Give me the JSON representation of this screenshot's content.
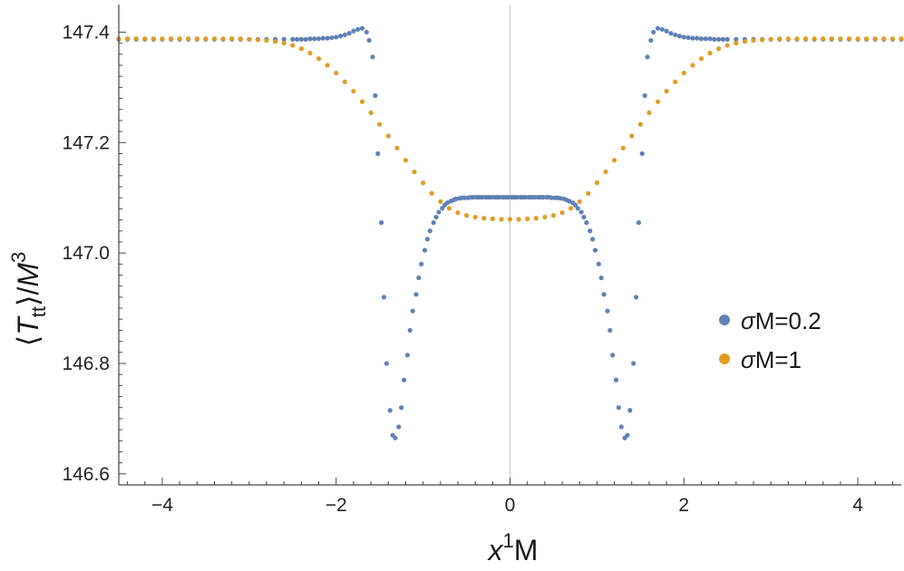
{
  "chart_data": {
    "type": "scatter",
    "xlim": [
      -4.5,
      4.5
    ],
    "ylim": [
      146.58,
      147.45
    ],
    "x_ticks": [
      -4,
      -2,
      0,
      2,
      4
    ],
    "x_tick_labels": [
      "−4",
      "−2",
      "0",
      "2",
      "4"
    ],
    "y_ticks": [
      146.6,
      146.8,
      147.0,
      147.2,
      147.4
    ],
    "y_tick_labels": [
      "146.6",
      "146.8",
      "147.0",
      "147.2",
      "147.4"
    ],
    "xlabel": {
      "base": "x",
      "sup": "1",
      "rest": "M"
    },
    "ylabel": {
      "open": "⟨",
      "T": "T",
      "sub": "tt",
      "close": "⟩/",
      "M": "M",
      "sup": "3"
    },
    "grid": false,
    "legend_position": "right",
    "series": [
      {
        "name": "σM=0.2",
        "legend_sym": "σ",
        "legend_rest": "M=0.2",
        "color": "#5e81b5",
        "points": [
          [
            -4.5,
            147.387
          ],
          [
            -4.4,
            147.387
          ],
          [
            -4.3,
            147.387
          ],
          [
            -4.2,
            147.387
          ],
          [
            -4.1,
            147.387
          ],
          [
            -4.0,
            147.387
          ],
          [
            -3.9,
            147.387
          ],
          [
            -3.8,
            147.387
          ],
          [
            -3.7,
            147.387
          ],
          [
            -3.6,
            147.387
          ],
          [
            -3.5,
            147.387
          ],
          [
            -3.4,
            147.387
          ],
          [
            -3.3,
            147.387
          ],
          [
            -3.2,
            147.387
          ],
          [
            -3.1,
            147.387
          ],
          [
            -3.0,
            147.387
          ],
          [
            -2.9,
            147.387
          ],
          [
            -2.8,
            147.387
          ],
          [
            -2.7,
            147.387
          ],
          [
            -2.6,
            147.387
          ],
          [
            -2.5,
            147.387
          ],
          [
            -2.45,
            147.387
          ],
          [
            -2.4,
            147.387
          ],
          [
            -2.35,
            147.387
          ],
          [
            -2.3,
            147.388
          ],
          [
            -2.25,
            147.388
          ],
          [
            -2.2,
            147.388
          ],
          [
            -2.15,
            147.389
          ],
          [
            -2.1,
            147.389
          ],
          [
            -2.05,
            147.39
          ],
          [
            -2.0,
            147.391
          ],
          [
            -1.95,
            147.393
          ],
          [
            -1.9,
            147.395
          ],
          [
            -1.85,
            147.398
          ],
          [
            -1.8,
            147.402
          ],
          [
            -1.75,
            147.405
          ],
          [
            -1.7,
            147.407
          ],
          [
            -1.65,
            147.4
          ],
          [
            -1.62,
            147.385
          ],
          [
            -1.58,
            147.355
          ],
          [
            -1.55,
            147.285
          ],
          [
            -1.52,
            147.18
          ],
          [
            -1.48,
            147.055
          ],
          [
            -1.45,
            146.92
          ],
          [
            -1.42,
            146.8
          ],
          [
            -1.38,
            146.715
          ],
          [
            -1.35,
            146.67
          ],
          [
            -1.32,
            146.665
          ],
          [
            -1.28,
            146.685
          ],
          [
            -1.25,
            146.72
          ],
          [
            -1.22,
            146.77
          ],
          [
            -1.18,
            146.815
          ],
          [
            -1.15,
            146.86
          ],
          [
            -1.12,
            146.895
          ],
          [
            -1.08,
            146.925
          ],
          [
            -1.05,
            146.955
          ],
          [
            -1.02,
            146.98
          ],
          [
            -0.98,
            147.005
          ],
          [
            -0.95,
            147.025
          ],
          [
            -0.92,
            147.04
          ],
          [
            -0.88,
            147.055
          ],
          [
            -0.85,
            147.065
          ],
          [
            -0.82,
            147.074
          ],
          [
            -0.78,
            147.081
          ],
          [
            -0.75,
            147.087
          ],
          [
            -0.72,
            147.091
          ],
          [
            -0.68,
            147.094
          ],
          [
            -0.65,
            147.096
          ],
          [
            -0.62,
            147.098
          ],
          [
            -0.58,
            147.099
          ],
          [
            -0.55,
            147.1
          ],
          [
            -0.52,
            147.1
          ],
          [
            -0.48,
            147.1
          ],
          [
            -0.45,
            147.101
          ],
          [
            -0.42,
            147.101
          ],
          [
            -0.38,
            147.101
          ],
          [
            -0.35,
            147.101
          ],
          [
            -0.32,
            147.101
          ],
          [
            -0.28,
            147.101
          ],
          [
            -0.25,
            147.101
          ],
          [
            -0.22,
            147.101
          ],
          [
            -0.18,
            147.101
          ],
          [
            -0.15,
            147.101
          ],
          [
            -0.12,
            147.101
          ],
          [
            -0.08,
            147.101
          ],
          [
            -0.05,
            147.101
          ],
          [
            -0.02,
            147.101
          ],
          [
            0.02,
            147.101
          ],
          [
            0.05,
            147.101
          ],
          [
            0.08,
            147.101
          ],
          [
            0.12,
            147.101
          ],
          [
            0.15,
            147.101
          ],
          [
            0.18,
            147.101
          ],
          [
            0.22,
            147.101
          ],
          [
            0.25,
            147.101
          ],
          [
            0.28,
            147.101
          ],
          [
            0.32,
            147.101
          ],
          [
            0.35,
            147.101
          ],
          [
            0.38,
            147.101
          ],
          [
            0.42,
            147.101
          ],
          [
            0.45,
            147.101
          ],
          [
            0.48,
            147.1
          ],
          [
            0.52,
            147.1
          ],
          [
            0.55,
            147.1
          ],
          [
            0.58,
            147.099
          ],
          [
            0.62,
            147.098
          ],
          [
            0.65,
            147.096
          ],
          [
            0.68,
            147.094
          ],
          [
            0.72,
            147.091
          ],
          [
            0.75,
            147.087
          ],
          [
            0.78,
            147.081
          ],
          [
            0.82,
            147.074
          ],
          [
            0.85,
            147.065
          ],
          [
            0.88,
            147.055
          ],
          [
            0.92,
            147.04
          ],
          [
            0.95,
            147.025
          ],
          [
            0.98,
            147.005
          ],
          [
            1.02,
            146.98
          ],
          [
            1.05,
            146.955
          ],
          [
            1.08,
            146.925
          ],
          [
            1.12,
            146.895
          ],
          [
            1.15,
            146.86
          ],
          [
            1.18,
            146.815
          ],
          [
            1.22,
            146.77
          ],
          [
            1.25,
            146.72
          ],
          [
            1.28,
            146.685
          ],
          [
            1.32,
            146.665
          ],
          [
            1.35,
            146.67
          ],
          [
            1.38,
            146.715
          ],
          [
            1.42,
            146.8
          ],
          [
            1.45,
            146.92
          ],
          [
            1.48,
            147.055
          ],
          [
            1.52,
            147.18
          ],
          [
            1.55,
            147.285
          ],
          [
            1.58,
            147.355
          ],
          [
            1.62,
            147.385
          ],
          [
            1.65,
            147.4
          ],
          [
            1.7,
            147.407
          ],
          [
            1.75,
            147.405
          ],
          [
            1.8,
            147.402
          ],
          [
            1.85,
            147.398
          ],
          [
            1.9,
            147.395
          ],
          [
            1.95,
            147.393
          ],
          [
            2.0,
            147.391
          ],
          [
            2.05,
            147.39
          ],
          [
            2.1,
            147.389
          ],
          [
            2.15,
            147.389
          ],
          [
            2.2,
            147.388
          ],
          [
            2.25,
            147.388
          ],
          [
            2.3,
            147.388
          ],
          [
            2.35,
            147.387
          ],
          [
            2.4,
            147.387
          ],
          [
            2.45,
            147.387
          ],
          [
            2.5,
            147.387
          ],
          [
            2.6,
            147.387
          ],
          [
            2.7,
            147.387
          ],
          [
            2.8,
            147.387
          ],
          [
            2.9,
            147.387
          ],
          [
            3.0,
            147.387
          ],
          [
            3.1,
            147.387
          ],
          [
            3.2,
            147.387
          ],
          [
            3.3,
            147.387
          ],
          [
            3.4,
            147.387
          ],
          [
            3.5,
            147.387
          ],
          [
            3.6,
            147.387
          ],
          [
            3.7,
            147.387
          ],
          [
            3.8,
            147.387
          ],
          [
            3.9,
            147.387
          ],
          [
            4.0,
            147.387
          ],
          [
            4.1,
            147.387
          ],
          [
            4.2,
            147.387
          ],
          [
            4.3,
            147.387
          ],
          [
            4.4,
            147.387
          ],
          [
            4.5,
            147.387
          ]
        ]
      },
      {
        "name": "σM=1",
        "legend_sym": "σ",
        "legend_rest": "M=1",
        "color": "#e19c24",
        "points": [
          [
            -4.5,
            147.388
          ],
          [
            -4.4,
            147.388
          ],
          [
            -4.3,
            147.388
          ],
          [
            -4.2,
            147.388
          ],
          [
            -4.1,
            147.388
          ],
          [
            -4.0,
            147.388
          ],
          [
            -3.9,
            147.388
          ],
          [
            -3.8,
            147.388
          ],
          [
            -3.7,
            147.388
          ],
          [
            -3.6,
            147.388
          ],
          [
            -3.5,
            147.388
          ],
          [
            -3.4,
            147.388
          ],
          [
            -3.3,
            147.388
          ],
          [
            -3.2,
            147.388
          ],
          [
            -3.1,
            147.388
          ],
          [
            -3.0,
            147.387
          ],
          [
            -2.9,
            147.386
          ],
          [
            -2.8,
            147.385
          ],
          [
            -2.7,
            147.383
          ],
          [
            -2.6,
            147.38
          ],
          [
            -2.5,
            147.376
          ],
          [
            -2.4,
            147.37
          ],
          [
            -2.3,
            147.362
          ],
          [
            -2.2,
            147.352
          ],
          [
            -2.1,
            147.34
          ],
          [
            -2.0,
            147.326
          ],
          [
            -1.9,
            147.31
          ],
          [
            -1.8,
            147.293
          ],
          [
            -1.7,
            147.274
          ],
          [
            -1.6,
            147.254
          ],
          [
            -1.5,
            147.233
          ],
          [
            -1.4,
            147.212
          ],
          [
            -1.3,
            147.19
          ],
          [
            -1.2,
            147.168
          ],
          [
            -1.1,
            147.147
          ],
          [
            -1.0,
            147.127
          ],
          [
            -0.9,
            147.108
          ],
          [
            -0.8,
            147.093
          ],
          [
            -0.7,
            147.081
          ],
          [
            -0.6,
            147.073
          ],
          [
            -0.5,
            147.068
          ],
          [
            -0.4,
            147.065
          ],
          [
            -0.3,
            147.063
          ],
          [
            -0.2,
            147.062
          ],
          [
            -0.1,
            147.061
          ],
          [
            0.0,
            147.061
          ],
          [
            0.1,
            147.061
          ],
          [
            0.2,
            147.062
          ],
          [
            0.3,
            147.063
          ],
          [
            0.4,
            147.065
          ],
          [
            0.5,
            147.068
          ],
          [
            0.6,
            147.073
          ],
          [
            0.7,
            147.081
          ],
          [
            0.8,
            147.093
          ],
          [
            0.9,
            147.108
          ],
          [
            1.0,
            147.127
          ],
          [
            1.1,
            147.147
          ],
          [
            1.2,
            147.168
          ],
          [
            1.3,
            147.19
          ],
          [
            1.4,
            147.212
          ],
          [
            1.5,
            147.233
          ],
          [
            1.6,
            147.254
          ],
          [
            1.7,
            147.274
          ],
          [
            1.8,
            147.293
          ],
          [
            1.9,
            147.31
          ],
          [
            2.0,
            147.326
          ],
          [
            2.1,
            147.34
          ],
          [
            2.2,
            147.352
          ],
          [
            2.3,
            147.362
          ],
          [
            2.4,
            147.37
          ],
          [
            2.5,
            147.376
          ],
          [
            2.6,
            147.38
          ],
          [
            2.7,
            147.383
          ],
          [
            2.8,
            147.385
          ],
          [
            2.9,
            147.386
          ],
          [
            3.0,
            147.387
          ],
          [
            3.1,
            147.388
          ],
          [
            3.2,
            147.388
          ],
          [
            3.3,
            147.388
          ],
          [
            3.4,
            147.388
          ],
          [
            3.5,
            147.388
          ],
          [
            3.6,
            147.388
          ],
          [
            3.7,
            147.388
          ],
          [
            3.8,
            147.388
          ],
          [
            3.9,
            147.388
          ],
          [
            4.0,
            147.388
          ],
          [
            4.1,
            147.388
          ],
          [
            4.2,
            147.388
          ],
          [
            4.3,
            147.388
          ],
          [
            4.4,
            147.388
          ],
          [
            4.5,
            147.388
          ]
        ]
      }
    ]
  }
}
